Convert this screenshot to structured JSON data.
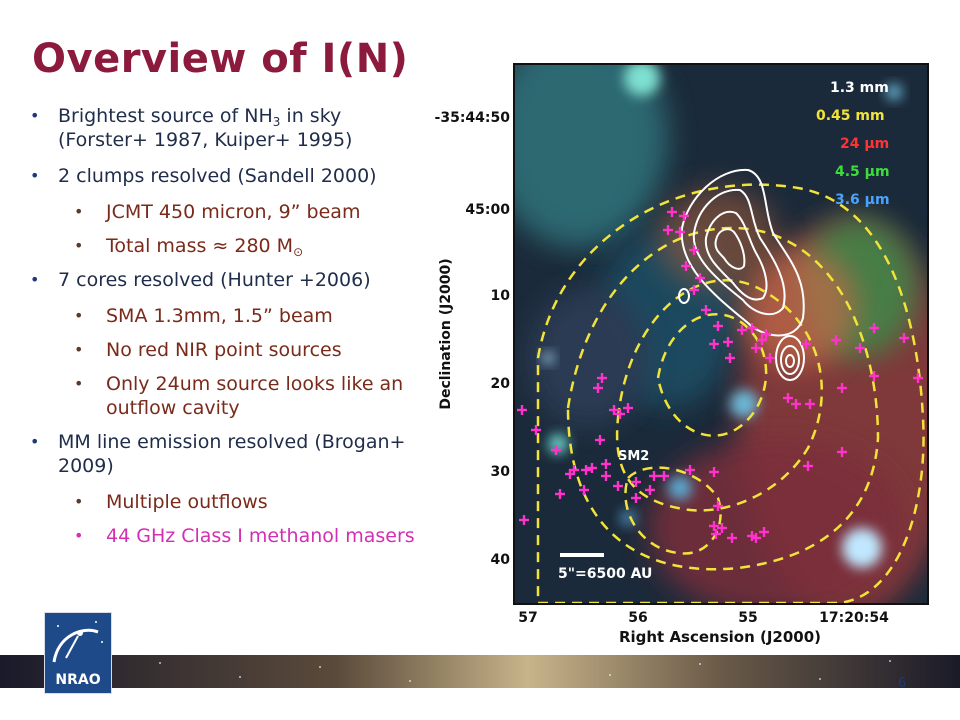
{
  "slide": {
    "title": "Overview of I(N)",
    "page_number": "6"
  },
  "bullets": [
    {
      "level": 1,
      "text": "Brightest source of NH",
      "sub": "3",
      "text_after": " in sky (Forster+ 1987, Kuiper+ 1995)"
    },
    {
      "level": 1,
      "text": "2 clumps resolved (Sandell 2000)"
    },
    {
      "level": 2,
      "text": "JCMT 450 micron, 9” beam"
    },
    {
      "level": 2,
      "text": "Total mass ≈ 280 M",
      "symbol": "⊙"
    },
    {
      "level": 1,
      "text": "7 cores resolved (Hunter +2006)"
    },
    {
      "level": 2,
      "text": "SMA 1.3mm, 1.5” beam"
    },
    {
      "level": 2,
      "text": "No red NIR point sources"
    },
    {
      "level": 2,
      "text": "Only 24um source looks like an outflow cavity"
    },
    {
      "level": 1,
      "text": "MM line emission resolved (Brogan+ 2009)"
    },
    {
      "level": 2,
      "text": "Multiple outflows"
    },
    {
      "level": 2,
      "text": "44 GHz Class I methanol masers",
      "color": "#d42fb4"
    }
  ],
  "figure": {
    "legend": [
      {
        "label": "1.3 mm",
        "color": "#ffffff"
      },
      {
        "label": "0.45 mm",
        "color": "#f2e33a"
      },
      {
        "label": "24 μm",
        "color": "#ff3333"
      },
      {
        "label": "4.5 μm",
        "color": "#3ddc3d"
      },
      {
        "label": "3.6 μm",
        "color": "#4aa3ff"
      }
    ],
    "y_axis_label": "Declination (J2000)",
    "y_ticks": [
      "-35:44:50",
      "45:00",
      "10",
      "20",
      "30",
      "40"
    ],
    "x_axis_label": "Right Ascension (J2000)",
    "x_ticks": [
      "57",
      "56",
      "55",
      "17:20:54"
    ],
    "region_label": "SM2",
    "scale_bar_label": "5\"=6500 AU",
    "maser_color": "#ff33cc",
    "contour_color_submm": "#f2e33a",
    "contour_color_mm": "#ffffff"
  },
  "logo": {
    "text": "NRAO"
  }
}
